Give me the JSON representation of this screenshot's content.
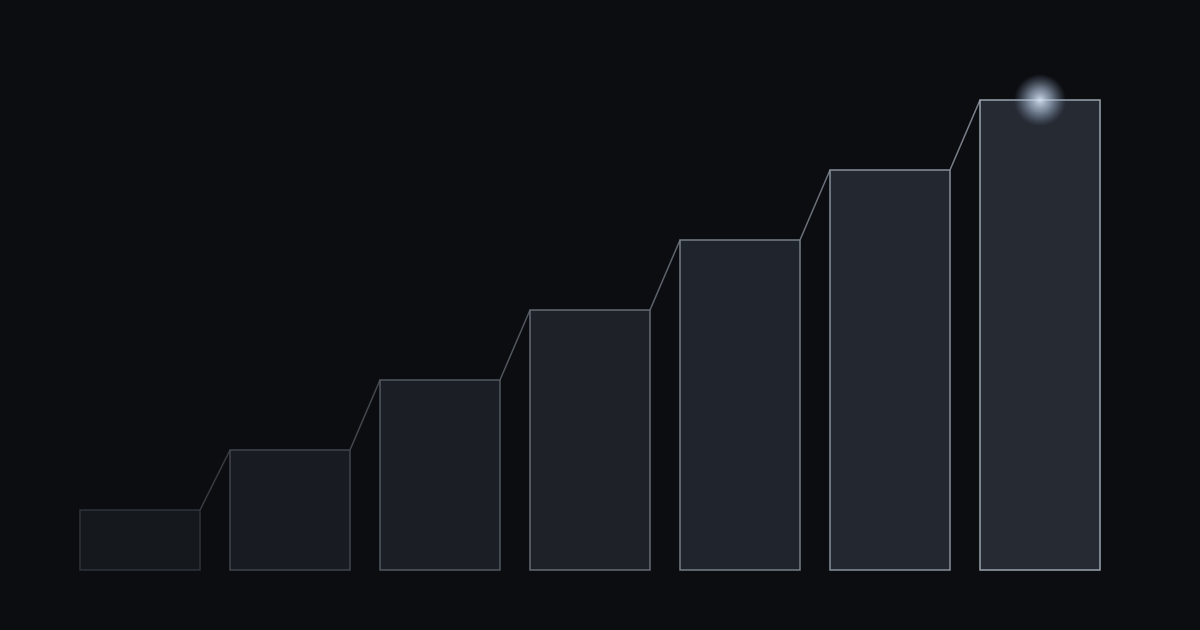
{
  "chart_data": {
    "type": "bar",
    "categories": [
      "",
      "",
      "",
      "",
      "",
      "",
      ""
    ],
    "values": [
      6,
      12,
      19,
      26,
      33,
      40,
      47
    ],
    "ylim": [
      0,
      47
    ],
    "title": "",
    "xlabel": "",
    "ylabel": "",
    "grid": false,
    "axes_visible": false,
    "connector_lines": true,
    "highlight_last_bar_glow": true,
    "colors": {
      "background": "#0c0d11",
      "fill_start": "#15181d",
      "fill_end": "#262a33",
      "stroke_start": "#2f333a",
      "stroke_end": "#9aa3ae",
      "glow": "#c8d8ec"
    }
  }
}
